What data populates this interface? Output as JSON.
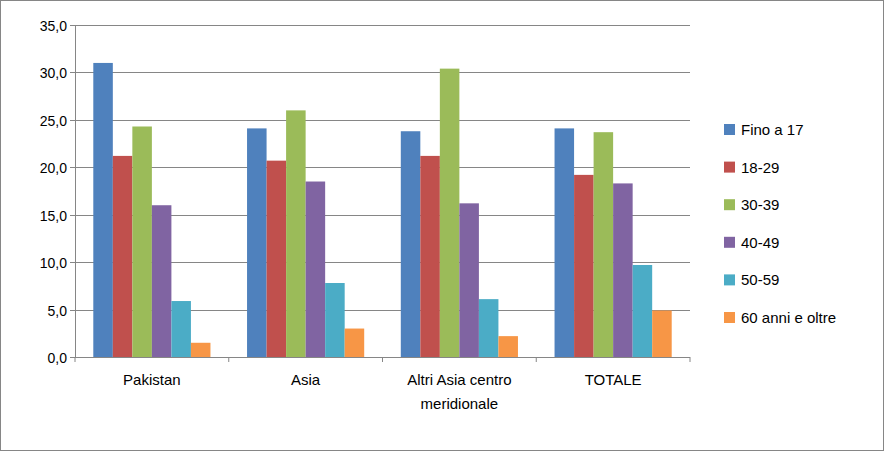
{
  "chart_data": {
    "type": "bar",
    "categories": [
      "Pakistan",
      "Asia",
      "Altri Asia centro meridionale",
      "TOTALE"
    ],
    "series": [
      {
        "name": "Fino a 17",
        "color": "#4f81bd",
        "values": [
          31.0,
          24.1,
          23.8,
          24.1
        ]
      },
      {
        "name": "18-29",
        "color": "#c0504d",
        "values": [
          21.2,
          20.7,
          21.2,
          19.2
        ]
      },
      {
        "name": "30-39",
        "color": "#9bbb59",
        "values": [
          24.3,
          26.0,
          30.4,
          23.7
        ]
      },
      {
        "name": "40-49",
        "color": "#8064a2",
        "values": [
          16.0,
          18.5,
          16.2,
          18.3
        ]
      },
      {
        "name": "50-59",
        "color": "#4bacc6",
        "values": [
          5.9,
          7.8,
          6.1,
          9.7
        ]
      },
      {
        "name": "60 anni e oltre",
        "color": "#f79646",
        "values": [
          1.5,
          3.0,
          2.2,
          4.9
        ]
      }
    ],
    "ylim": [
      0,
      35
    ],
    "yticks": [
      {
        "value": 0,
        "label": "0,0"
      },
      {
        "value": 5,
        "label": "5,0"
      },
      {
        "value": 10,
        "label": "10,0"
      },
      {
        "value": 15,
        "label": "15,0"
      },
      {
        "value": 20,
        "label": "20,0"
      },
      {
        "value": 25,
        "label": "25,0"
      },
      {
        "value": 30,
        "label": "30,0"
      },
      {
        "value": 35,
        "label": "35,0"
      }
    ],
    "grid": true,
    "legend": "right"
  }
}
